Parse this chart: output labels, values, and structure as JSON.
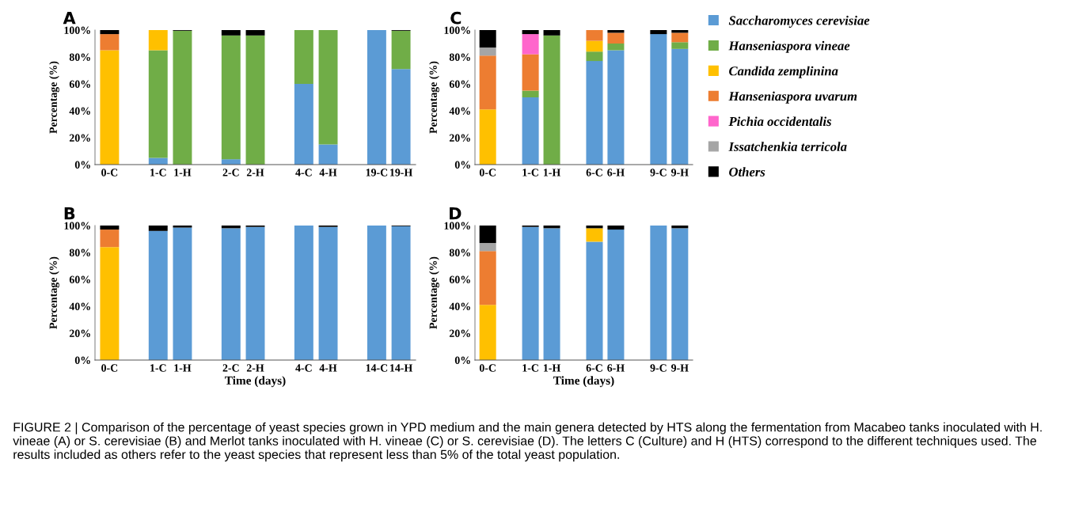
{
  "chart_data": [
    {
      "type": "bar",
      "stacked": true,
      "title": "A",
      "ylabel": "Percentage (%)",
      "ylim": [
        0,
        100
      ],
      "yticks": [
        {
          "value": 0,
          "label": "0%"
        },
        {
          "value": 20,
          "label": "20%"
        },
        {
          "value": 40,
          "label": "40%"
        },
        {
          "value": 60,
          "label": "60%"
        },
        {
          "value": 80,
          "label": "80%"
        },
        {
          "value": 100,
          "label": "100%"
        }
      ],
      "grid": false,
      "legend": false,
      "categories": [
        "0-C",
        null,
        "1-C",
        "1-H",
        null,
        "2-C",
        "2-H",
        null,
        "4-C",
        "4-H",
        null,
        "19-C",
        "19-H"
      ],
      "series": [
        {
          "color": "#5b9bd5",
          "values": [
            0,
            null,
            5,
            0,
            null,
            4,
            0,
            null,
            60,
            15,
            null,
            100,
            71
          ]
        },
        {
          "color": "#70ad47",
          "values": [
            0,
            null,
            80,
            99.5,
            null,
            92,
            96,
            null,
            40,
            85,
            null,
            0,
            28.5
          ]
        },
        {
          "color": "#ffc000",
          "values": [
            85,
            null,
            15,
            0,
            null,
            0,
            0,
            null,
            0,
            0,
            null,
            0,
            0
          ]
        },
        {
          "color": "#ed7d31",
          "values": [
            12,
            null,
            0,
            0,
            null,
            0,
            0,
            null,
            0,
            0,
            null,
            0,
            0
          ]
        },
        {
          "color": "#ff66cc",
          "values": [
            0,
            null,
            0,
            0,
            null,
            0,
            0,
            null,
            0,
            0,
            null,
            0,
            0
          ]
        },
        {
          "color": "#a5a5a5",
          "values": [
            0,
            null,
            0,
            0,
            null,
            0,
            0,
            null,
            0,
            0,
            null,
            0,
            0
          ]
        },
        {
          "color": "#000000",
          "values": [
            3,
            null,
            0,
            0.5,
            null,
            4,
            4,
            null,
            0,
            0,
            null,
            0,
            0.5
          ]
        }
      ]
    },
    {
      "type": "bar",
      "stacked": true,
      "title": "B",
      "ylabel": "Percentage (%)",
      "xlabel": "Time (days)",
      "ylim": [
        0,
        100
      ],
      "yticks": [
        {
          "value": 0,
          "label": "0%"
        },
        {
          "value": 20,
          "label": "20%"
        },
        {
          "value": 40,
          "label": "40%"
        },
        {
          "value": 60,
          "label": "60%"
        },
        {
          "value": 80,
          "label": "80%"
        },
        {
          "value": 100,
          "label": "100%"
        }
      ],
      "grid": false,
      "legend": false,
      "categories": [
        "0-C",
        null,
        "1-C",
        "1-H",
        null,
        "2-C",
        "2-H",
        null,
        "4-C",
        "4-H",
        null,
        "14-C",
        "14-H"
      ],
      "series": [
        {
          "color": "#5b9bd5",
          "values": [
            0,
            null,
            96,
            98.5,
            null,
            98,
            99,
            null,
            100,
            99,
            null,
            100,
            99.5
          ]
        },
        {
          "color": "#70ad47",
          "values": [
            0,
            null,
            0,
            0,
            null,
            0,
            0,
            null,
            0,
            0,
            null,
            0,
            0
          ]
        },
        {
          "color": "#ffc000",
          "values": [
            84,
            null,
            0,
            0,
            null,
            0,
            0,
            null,
            0,
            0,
            null,
            0,
            0
          ]
        },
        {
          "color": "#ed7d31",
          "values": [
            13,
            null,
            0,
            0,
            null,
            0,
            0,
            null,
            0,
            0,
            null,
            0,
            0
          ]
        },
        {
          "color": "#ff66cc",
          "values": [
            0,
            null,
            0,
            0,
            null,
            0,
            0,
            null,
            0,
            0,
            null,
            0,
            0
          ]
        },
        {
          "color": "#a5a5a5",
          "values": [
            0,
            null,
            0,
            0,
            null,
            0,
            0,
            null,
            0,
            0,
            null,
            0,
            0
          ]
        },
        {
          "color": "#000000",
          "values": [
            3,
            null,
            4,
            1.5,
            null,
            2,
            1,
            null,
            0,
            1,
            null,
            0,
            0.5
          ]
        }
      ]
    },
    {
      "type": "bar",
      "stacked": true,
      "title": "C",
      "ylabel": "Percentage (%)",
      "ylim": [
        0,
        100
      ],
      "yticks": [
        {
          "value": 0,
          "label": "0%"
        },
        {
          "value": 20,
          "label": "20%"
        },
        {
          "value": 40,
          "label": "40%"
        },
        {
          "value": 60,
          "label": "60%"
        },
        {
          "value": 80,
          "label": "80%"
        },
        {
          "value": 100,
          "label": "100%"
        }
      ],
      "grid": false,
      "legend": "right",
      "categories": [
        "0-C",
        null,
        "1-C",
        "1-H",
        null,
        "6-C",
        "6-H",
        null,
        "9-C",
        "9-H"
      ],
      "series": [
        {
          "name": "Saccharomyces cerevisiae",
          "color": "#5b9bd5",
          "values": [
            0,
            null,
            50,
            0,
            null,
            77,
            85,
            null,
            97,
            86
          ]
        },
        {
          "name": "Hanseniaspora vineae",
          "color": "#70ad47",
          "values": [
            0,
            null,
            5,
            96,
            null,
            7,
            5,
            null,
            0,
            5
          ]
        },
        {
          "name": "Candida zemplinina",
          "color": "#ffc000",
          "values": [
            41,
            null,
            0,
            0,
            null,
            8,
            0,
            null,
            0,
            0
          ]
        },
        {
          "name": "Hanseniaspora uvarum",
          "color": "#ed7d31",
          "values": [
            40,
            null,
            27,
            0,
            null,
            8,
            8,
            null,
            0,
            7
          ]
        },
        {
          "name": "Pichia occidentalis",
          "color": "#ff66cc",
          "values": [
            0,
            null,
            15,
            0,
            null,
            0,
            0,
            null,
            0,
            0
          ]
        },
        {
          "name": "Issatchenkia terricola",
          "color": "#a5a5a5",
          "values": [
            6,
            null,
            0,
            0,
            null,
            0,
            0,
            null,
            0,
            0
          ]
        },
        {
          "name": "Others",
          "color": "#000000",
          "values": [
            13,
            null,
            3,
            4,
            null,
            0,
            2,
            null,
            3,
            2
          ]
        }
      ]
    },
    {
      "type": "bar",
      "stacked": true,
      "title": "D",
      "ylabel": "Percentage (%)",
      "xlabel": "Time (days)",
      "ylim": [
        0,
        100
      ],
      "yticks": [
        {
          "value": 0,
          "label": "0%"
        },
        {
          "value": 20,
          "label": "20%"
        },
        {
          "value": 40,
          "label": "40%"
        },
        {
          "value": 60,
          "label": "60%"
        },
        {
          "value": 80,
          "label": "80%"
        },
        {
          "value": 100,
          "label": "100%"
        }
      ],
      "grid": false,
      "legend": false,
      "categories": [
        "0-C",
        null,
        "1-C",
        "1-H",
        null,
        "6-C",
        "6-H",
        null,
        "9-C",
        "9-H"
      ],
      "annotations": [
        "FIGURE 2 | Comparison of the percentage of yeast species grown in YPD medium and the main genera detected by HTS along the fermentation from Macabeo tanks inoculated with H. vineae (A) or S. cerevisiae (B) and Merlot tanks inoculated with H. vineae (C) or S. cerevisiae (D). The letters C (Culture) and H (HTS) correspond to the different techniques used. The results included as others refer to the yeast species that represent less than 5% of the total yeast population."
      ],
      "series": [
        {
          "color": "#5b9bd5",
          "values": [
            0,
            null,
            99,
            98,
            null,
            88,
            97,
            null,
            100,
            98
          ]
        },
        {
          "color": "#70ad47",
          "values": [
            0,
            null,
            0,
            0,
            null,
            0,
            0,
            null,
            0,
            0
          ]
        },
        {
          "color": "#ffc000",
          "values": [
            41,
            null,
            0,
            0,
            null,
            10,
            0,
            null,
            0,
            0
          ]
        },
        {
          "color": "#ed7d31",
          "values": [
            40,
            null,
            0,
            0,
            null,
            0,
            0,
            null,
            0,
            0
          ]
        },
        {
          "color": "#ff66cc",
          "values": [
            0,
            null,
            0,
            0,
            null,
            0,
            0,
            null,
            0,
            0
          ]
        },
        {
          "color": "#a5a5a5",
          "values": [
            6,
            null,
            0,
            0,
            null,
            0,
            0,
            null,
            0,
            0
          ]
        },
        {
          "color": "#000000",
          "values": [
            13,
            null,
            1,
            2,
            null,
            2,
            3,
            null,
            0,
            2
          ]
        }
      ]
    }
  ]
}
